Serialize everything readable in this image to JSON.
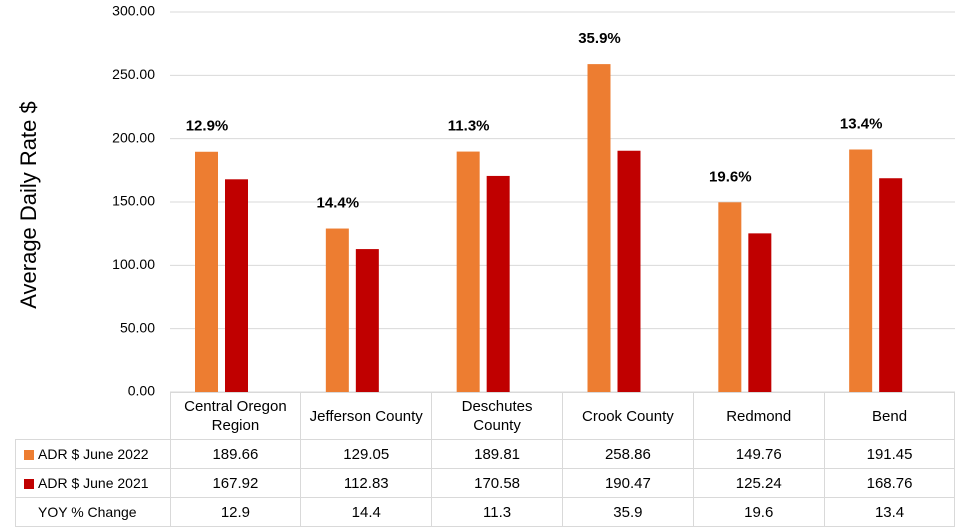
{
  "chart_data": {
    "type": "bar",
    "y_label": "Average Daily Rate $",
    "categories": [
      "Central Oregon Region",
      "Jefferson County",
      "Deschutes County",
      "Crook County",
      "Redmond",
      "Bend"
    ],
    "series": [
      {
        "name": "ADR $ June 2022",
        "color": "#ed7d31",
        "values": [
          189.66,
          129.05,
          189.81,
          258.86,
          149.76,
          191.45
        ]
      },
      {
        "name": "ADR $ June 2021",
        "color": "#c00000",
        "values": [
          167.92,
          112.83,
          170.58,
          190.47,
          125.24,
          168.76
        ]
      }
    ],
    "change": {
      "name": "YOY % Change",
      "values": [
        12.9,
        14.4,
        11.3,
        35.9,
        19.6,
        13.4
      ],
      "value_labels": [
        "12.9%",
        "14.4%",
        "11.3%",
        "35.9%",
        "19.6%",
        "13.4%"
      ]
    },
    "ylim": [
      0,
      300
    ],
    "yticks": [
      {
        "value": 0,
        "label": "0.00"
      },
      {
        "value": 50,
        "label": "50.00"
      },
      {
        "value": 100,
        "label": "100.00"
      },
      {
        "value": 150,
        "label": "150.00"
      },
      {
        "value": 200,
        "label": "200.00"
      },
      {
        "value": 250,
        "label": "250.00"
      },
      {
        "value": 300,
        "label": "300.00"
      }
    ],
    "grid": true
  }
}
